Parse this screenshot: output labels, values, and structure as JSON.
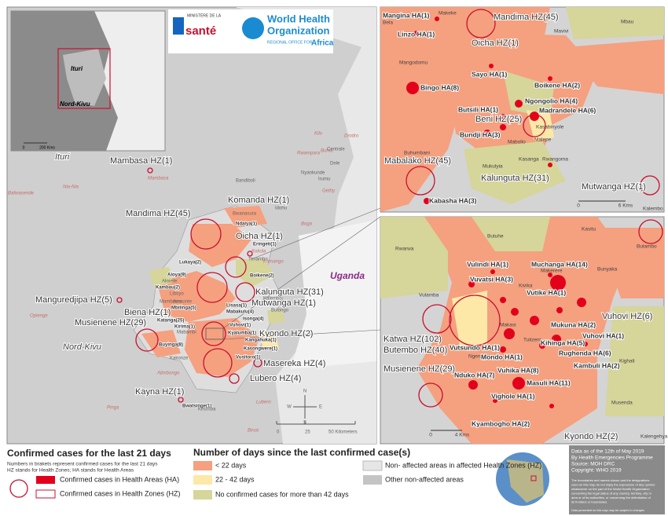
{
  "logos": {
    "ministry": "MINISTÈRE DE LA",
    "ministry_name": "santé",
    "who": "World Health",
    "who_2": "Organization",
    "who_region": "REGIONAL OFFICE FOR",
    "who_africa": "Africa"
  },
  "overview": {
    "labels": [
      "Ituri",
      "Nord-Kivu"
    ],
    "scale": [
      "0",
      "200 Kms"
    ]
  },
  "main_map": {
    "regions": [
      "Ituri",
      "Nord-Kivu",
      "Uganda"
    ],
    "zone_labels": [
      "Mambasa HZ(1)",
      "Mandima HZ(45)",
      "Komanda HZ(1)",
      "Oicha HZ(1)",
      "Manguredjipa HZ(5)",
      "Kalunguta HZ(31)",
      "Mutwanga HZ(1)",
      "Biena HZ(1)",
      "Musienene HZ(29)",
      "Kyondo HZ(2)",
      "Masereka HZ(4)",
      "Lubero HZ(4)",
      "Kayna HZ(1)"
    ],
    "area_labels": [
      "Ndalya(1)",
      "Eringeti(1)",
      "Lukaya(2)",
      "Aloya(9)",
      "Kambau(2)",
      "Boikene(2)",
      "Mbilinga(5)",
      "Katanga(25)",
      "Kirima(1)",
      "Lisasa(1)",
      "Mabakulu(4)",
      "Isonga(4)",
      "Vuhovi(1)",
      "Kyalumba(1)",
      "Kangahuka(1)",
      "Kasongwere(1)",
      "Vusitoro(1)",
      "Buyinga(8)",
      "Bwatsinge(1)"
    ],
    "place_labels": [
      "Mambasa",
      "Nia-Nia",
      "Bafwasende",
      "Opienge",
      "Rwampara",
      "Kilo",
      "Bunia",
      "Centrale",
      "Dele",
      "Nyankunde",
      "Irumu",
      "Drodro",
      "Gethy",
      "Boga",
      "Bandiboli",
      "Idohu",
      "Bwanasura",
      "Kokola",
      "Tenambo",
      "Kamango",
      "Kalembo",
      "Bulongo",
      "Akwele",
      "Liboyo",
      "Mambowa",
      "Amaunte",
      "Mabambi",
      "Kakonze",
      "Alimbongo",
      "Pinga",
      "Lubero",
      "Kirumba",
      "Birua"
    ],
    "scale": [
      "0",
      "25",
      "50 Kilometers"
    ],
    "compass": [
      "N",
      "S",
      "W",
      "E"
    ]
  },
  "inset_north": {
    "labels": [
      "Mangina HA(1)",
      "Makeke",
      "Bela",
      "Mandima HZ(45)",
      "Mavivi",
      "Mbau",
      "Linzo HA(1)",
      "Oicha HZ(1)",
      "Mangodomu",
      "Sayo HA(1)",
      "Bingo HA(8)",
      "Boikene HA(2)",
      "Ngongolio HA(4)",
      "Butsili HA(1)",
      "Madrandele HA(6)",
      "Beni HZ(25)",
      "Bundji HA(3)",
      "Kasabinyole",
      "Mabolio",
      "Malepe",
      "Buhumbani",
      "Kasanga",
      "Rwangoma",
      "Mabalako HZ(45)",
      "Mukulyia",
      "Kalunguta HZ(31)",
      "Mutwanga HZ(1)",
      "Kabasha HA(3)",
      "Kalembo"
    ],
    "scale": [
      "0",
      "6 Kms"
    ]
  },
  "inset_south": {
    "labels": [
      "Kasitu",
      "Bulambo",
      "Butuhe",
      "Rwarwa",
      "Vulindi HA(1)",
      "Muchanga HA(14)",
      "Makerere",
      "Bunyaka",
      "Vuvatsi HA(3)",
      "Kivika",
      "Vutike HA(1)",
      "Vulamba",
      "Vuhovi HZ(6)",
      "Katwa HZ(102)",
      "Butembo HZ(40)",
      "Makasi",
      "Mukuna HA(2)",
      "Vuhovi HA(1)",
      "Tulizeni",
      "Kihinga HA(5)",
      "Vutsundo HA(1)",
      "Ngengere",
      "Mondo HA(1)",
      "Rughenda HA(6)",
      "Kighali",
      "Musienene HZ(29)",
      "Kambuli HA(2)",
      "Vuhika HA(8)",
      "Nduko HA(7)",
      "Masuli HA(11)",
      "Vighole HA(1)",
      "Musenda",
      "Kyambogho HA(2)",
      "Kyondo HZ(2)",
      "Kalengehya"
    ],
    "scale": [
      "0",
      "4 Kms"
    ]
  },
  "legend": {
    "title": "Confirmed cases for the last 21 days",
    "notes": [
      "Numbers in brakets represent confirmed cases for the last 21 days",
      "HZ stands for Health Zones; HA stands for Health Areas"
    ],
    "items": [
      "Confirmed cases in Health Areas (HA)",
      "Confirmed cases in Health Zones (HZ)"
    ],
    "days_title": "Number of days since the last confirmed case(s)",
    "days_items": [
      "< 22 days",
      "22 - 42 days",
      "No confirmed cases for more than 42 days",
      "Non- affected areas in affected Health Zones (HZ)",
      "Other non-affected areas"
    ]
  },
  "info": {
    "lines": [
      "Data as of the 12th of May 2019",
      "By Health Emergencies Programme",
      "Source: MOH DRC",
      "Copyright: WHO 2019"
    ],
    "disclaimer": [
      "The boundaries and names shown and the designations",
      "used on this map do not imply the expression of any opinion",
      "whatsoever on the part of the World Health Organization",
      "concerning the legal status of any country, territory, city or",
      "area or of its authorities, or concerning the delimitation of",
      "its frontiers or boundaries."
    ],
    "note": "Data presented on this map may be subject to changes"
  }
}
